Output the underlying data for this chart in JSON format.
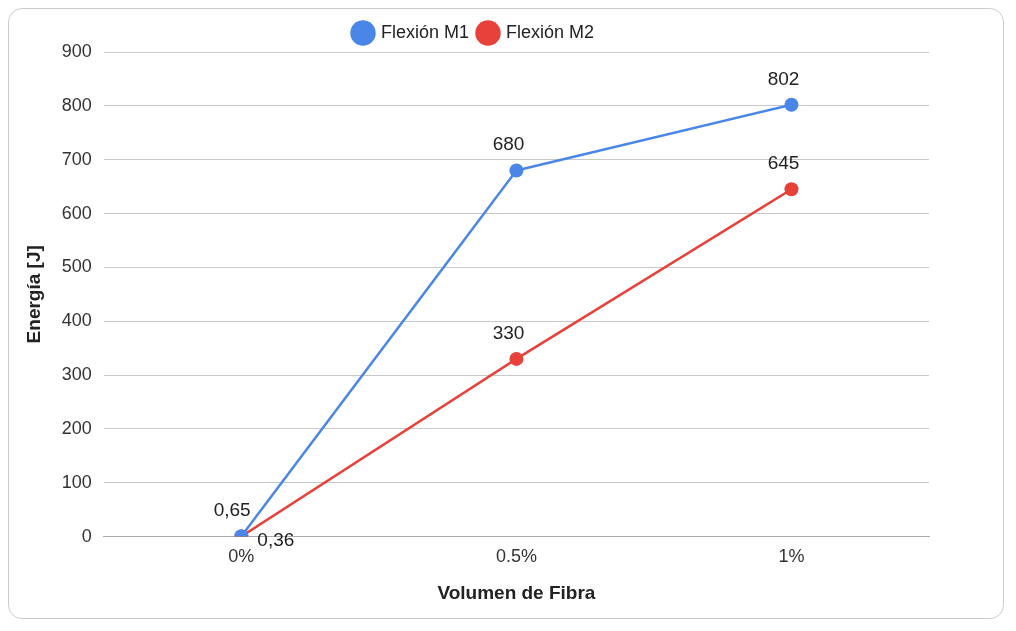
{
  "chart_data": {
    "type": "line",
    "xlabel": "Volumen de Fibra",
    "ylabel": "Energía [J]",
    "categories": [
      "0%",
      "0.5%",
      "1%"
    ],
    "series": [
      {
        "name": "Flexión M1",
        "color": "#4a86e8",
        "values": [
          0.65,
          680,
          802
        ],
        "value_labels": [
          "0,65",
          "680",
          "802"
        ]
      },
      {
        "name": "Flexión M2",
        "color": "#e8413a",
        "values": [
          0.36,
          330,
          645
        ],
        "value_labels": [
          "0,36",
          "330",
          "645"
        ]
      }
    ],
    "ylim": [
      0,
      900
    ],
    "yticks": [
      0,
      100,
      200,
      300,
      400,
      500,
      600,
      700,
      800,
      900
    ],
    "grid": "y",
    "legend": "top",
    "marker": "circle",
    "line_style": "solid"
  }
}
